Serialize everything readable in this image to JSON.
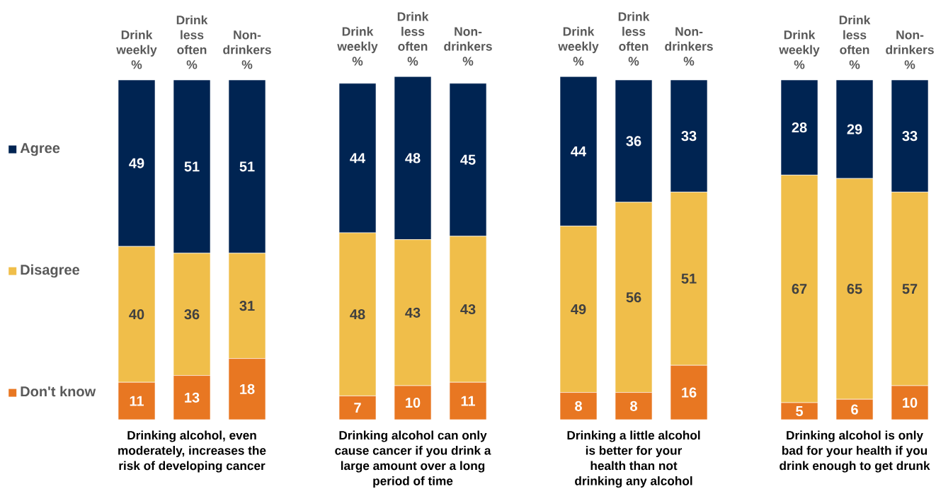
{
  "chart_data": [
    {
      "type": "bar",
      "stacked": true,
      "categories": [
        "Drink weekly %",
        "Drink less often %",
        "Non-drinkers %"
      ],
      "xlabel": "Drinking alcohol, even moderately, increases the risk of developing cancer",
      "series": [
        {
          "name": "Don't know",
          "color": "#E87722",
          "values": [
            11,
            13,
            18
          ]
        },
        {
          "name": "Disagree",
          "color": "#F0BE4A",
          "values": [
            40,
            36,
            31
          ]
        },
        {
          "name": "Agree",
          "color": "#002452",
          "values": [
            49,
            51,
            51
          ]
        }
      ],
      "tick_labels": "x",
      "data_labels": true,
      "legend": "left"
    },
    {
      "type": "bar",
      "stacked": true,
      "categories": [
        "Drink weekly %",
        "Drink less often %",
        "Non-drinkers %"
      ],
      "xlabel": "Drinking alcohol can only cause cancer if you drink a large amount over a long period of time",
      "series": [
        {
          "color": "#E87722",
          "values": [
            7,
            10,
            11
          ]
        },
        {
          "color": "#F0BE4A",
          "values": [
            48,
            43,
            43
          ]
        },
        {
          "color": "#002452",
          "values": [
            44,
            48,
            45
          ]
        }
      ],
      "tick_labels": "x",
      "data_labels": true
    },
    {
      "type": "bar",
      "stacked": true,
      "categories": [
        "Drink weekly %",
        "Drink less often %",
        "Non-drinkers %"
      ],
      "xlabel": "Drinking a little alcohol is better for your health than not drinking any alcohol",
      "series": [
        {
          "color": "#E87722",
          "values": [
            8,
            8,
            16
          ]
        },
        {
          "color": "#F0BE4A",
          "values": [
            49,
            56,
            51
          ]
        },
        {
          "color": "#002452",
          "values": [
            44,
            36,
            33
          ]
        }
      ],
      "tick_labels": "x",
      "data_labels": true
    },
    {
      "type": "bar",
      "stacked": true,
      "categories": [
        "Drink weekly %",
        "Drink less often %",
        "Non-drinkers %"
      ],
      "xlabel": "Drinking alcohol is only bad for your health if you drink enough to get drunk",
      "series": [
        {
          "color": "#E87722",
          "values": [
            5,
            6,
            10
          ]
        },
        {
          "color": "#F0BE4A",
          "values": [
            67,
            65,
            57
          ]
        },
        {
          "color": "#002452",
          "values": [
            28,
            29,
            33
          ]
        }
      ],
      "tick_labels": "x",
      "data_labels": true
    }
  ]
}
